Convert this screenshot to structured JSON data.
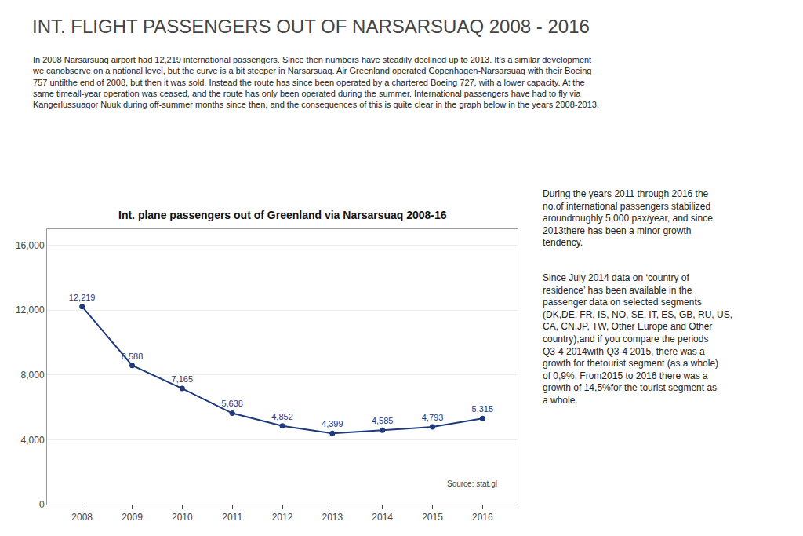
{
  "title": "INT. FLIGHT PASSENGERS OUT OF NARSARSUAQ 2008 - 2016",
  "annotations": [
    [
      "In 2008 Narsarsuaq airport had 12,219 international passengers. Since then numbers have steadily declined up to 2013. It’s a similar development",
      "we canobserve on a national level, but the curve is a bit steeper in Narsarsuaq. Air Greenland operated Copenhagen-Narsarsuaq with their Boeing",
      "757 untilthe end of 2008, but then it was sold. Instead the route has since been operated by a chartered Boeing 727, with a lower capacity. At the",
      "same timeall-year operation was ceased, and the route has only been operated during the summer. International passengers have had to fly via",
      "Kangerlussuaqor Nuuk during off-summer months since then, and the consequences of this is quite clear in the graph below in the years 2008-2013."
    ],
    [
      "During the years 2011 through 2016 the",
      "no.of international passengers stabilized",
      "aroundroughly 5,000 pax/year, and since",
      "2013there has been a minor growth",
      "tendency."
    ],
    [
      "Since July 2014 data on ‘country of",
      "residence’ has been available in the",
      "passenger data on selected segments",
      "(DK,DE, FR, IS, NO, SE, IT, ES, GB, RU, US,",
      "CA, CN,JP, TW, Other Europe and Other",
      "country),and if you compare the periods",
      "Q3-4 2014with Q3-4 2015, there was a",
      "growth for thetourist segment (as a whole)",
      "of 0,9%. From2015 to 2016 there was a",
      "growth of 14,5%for the tourist segment as",
      "a whole."
    ]
  ],
  "chart_data": {
    "type": "line",
    "title": "Int. plane passengers out of Greenland via Narsarsuaq 2008-16",
    "x": [
      2008,
      2009,
      2010,
      2011,
      2012,
      2013,
      2014,
      2015,
      2016
    ],
    "values": [
      12219,
      8588,
      7165,
      5638,
      4852,
      4399,
      4585,
      4793,
      5315
    ],
    "value_labels": [
      "12,219",
      "8,588",
      "7,165",
      "5,638",
      "4,852",
      "4,399",
      "4,585",
      "4,793",
      "5,315"
    ],
    "data_labels": true,
    "color": "#1E3A7A",
    "marker": "circle",
    "xlim": [
      2007.3,
      2016.7
    ],
    "xticks": [
      2008,
      2009,
      2010,
      2011,
      2012,
      2013,
      2014,
      2015,
      2016
    ],
    "ylim": [
      0,
      17000
    ],
    "yticks": [
      0,
      {
        "value": 4000,
        "label": "4,000"
      },
      {
        "value": 8000,
        "label": "8,000"
      },
      {
        "value": 12000,
        "label": "12,000"
      },
      {
        "value": 16000,
        "label": "16,000"
      }
    ],
    "grid": "y",
    "annotations": [
      "Source: stat.gl"
    ]
  }
}
